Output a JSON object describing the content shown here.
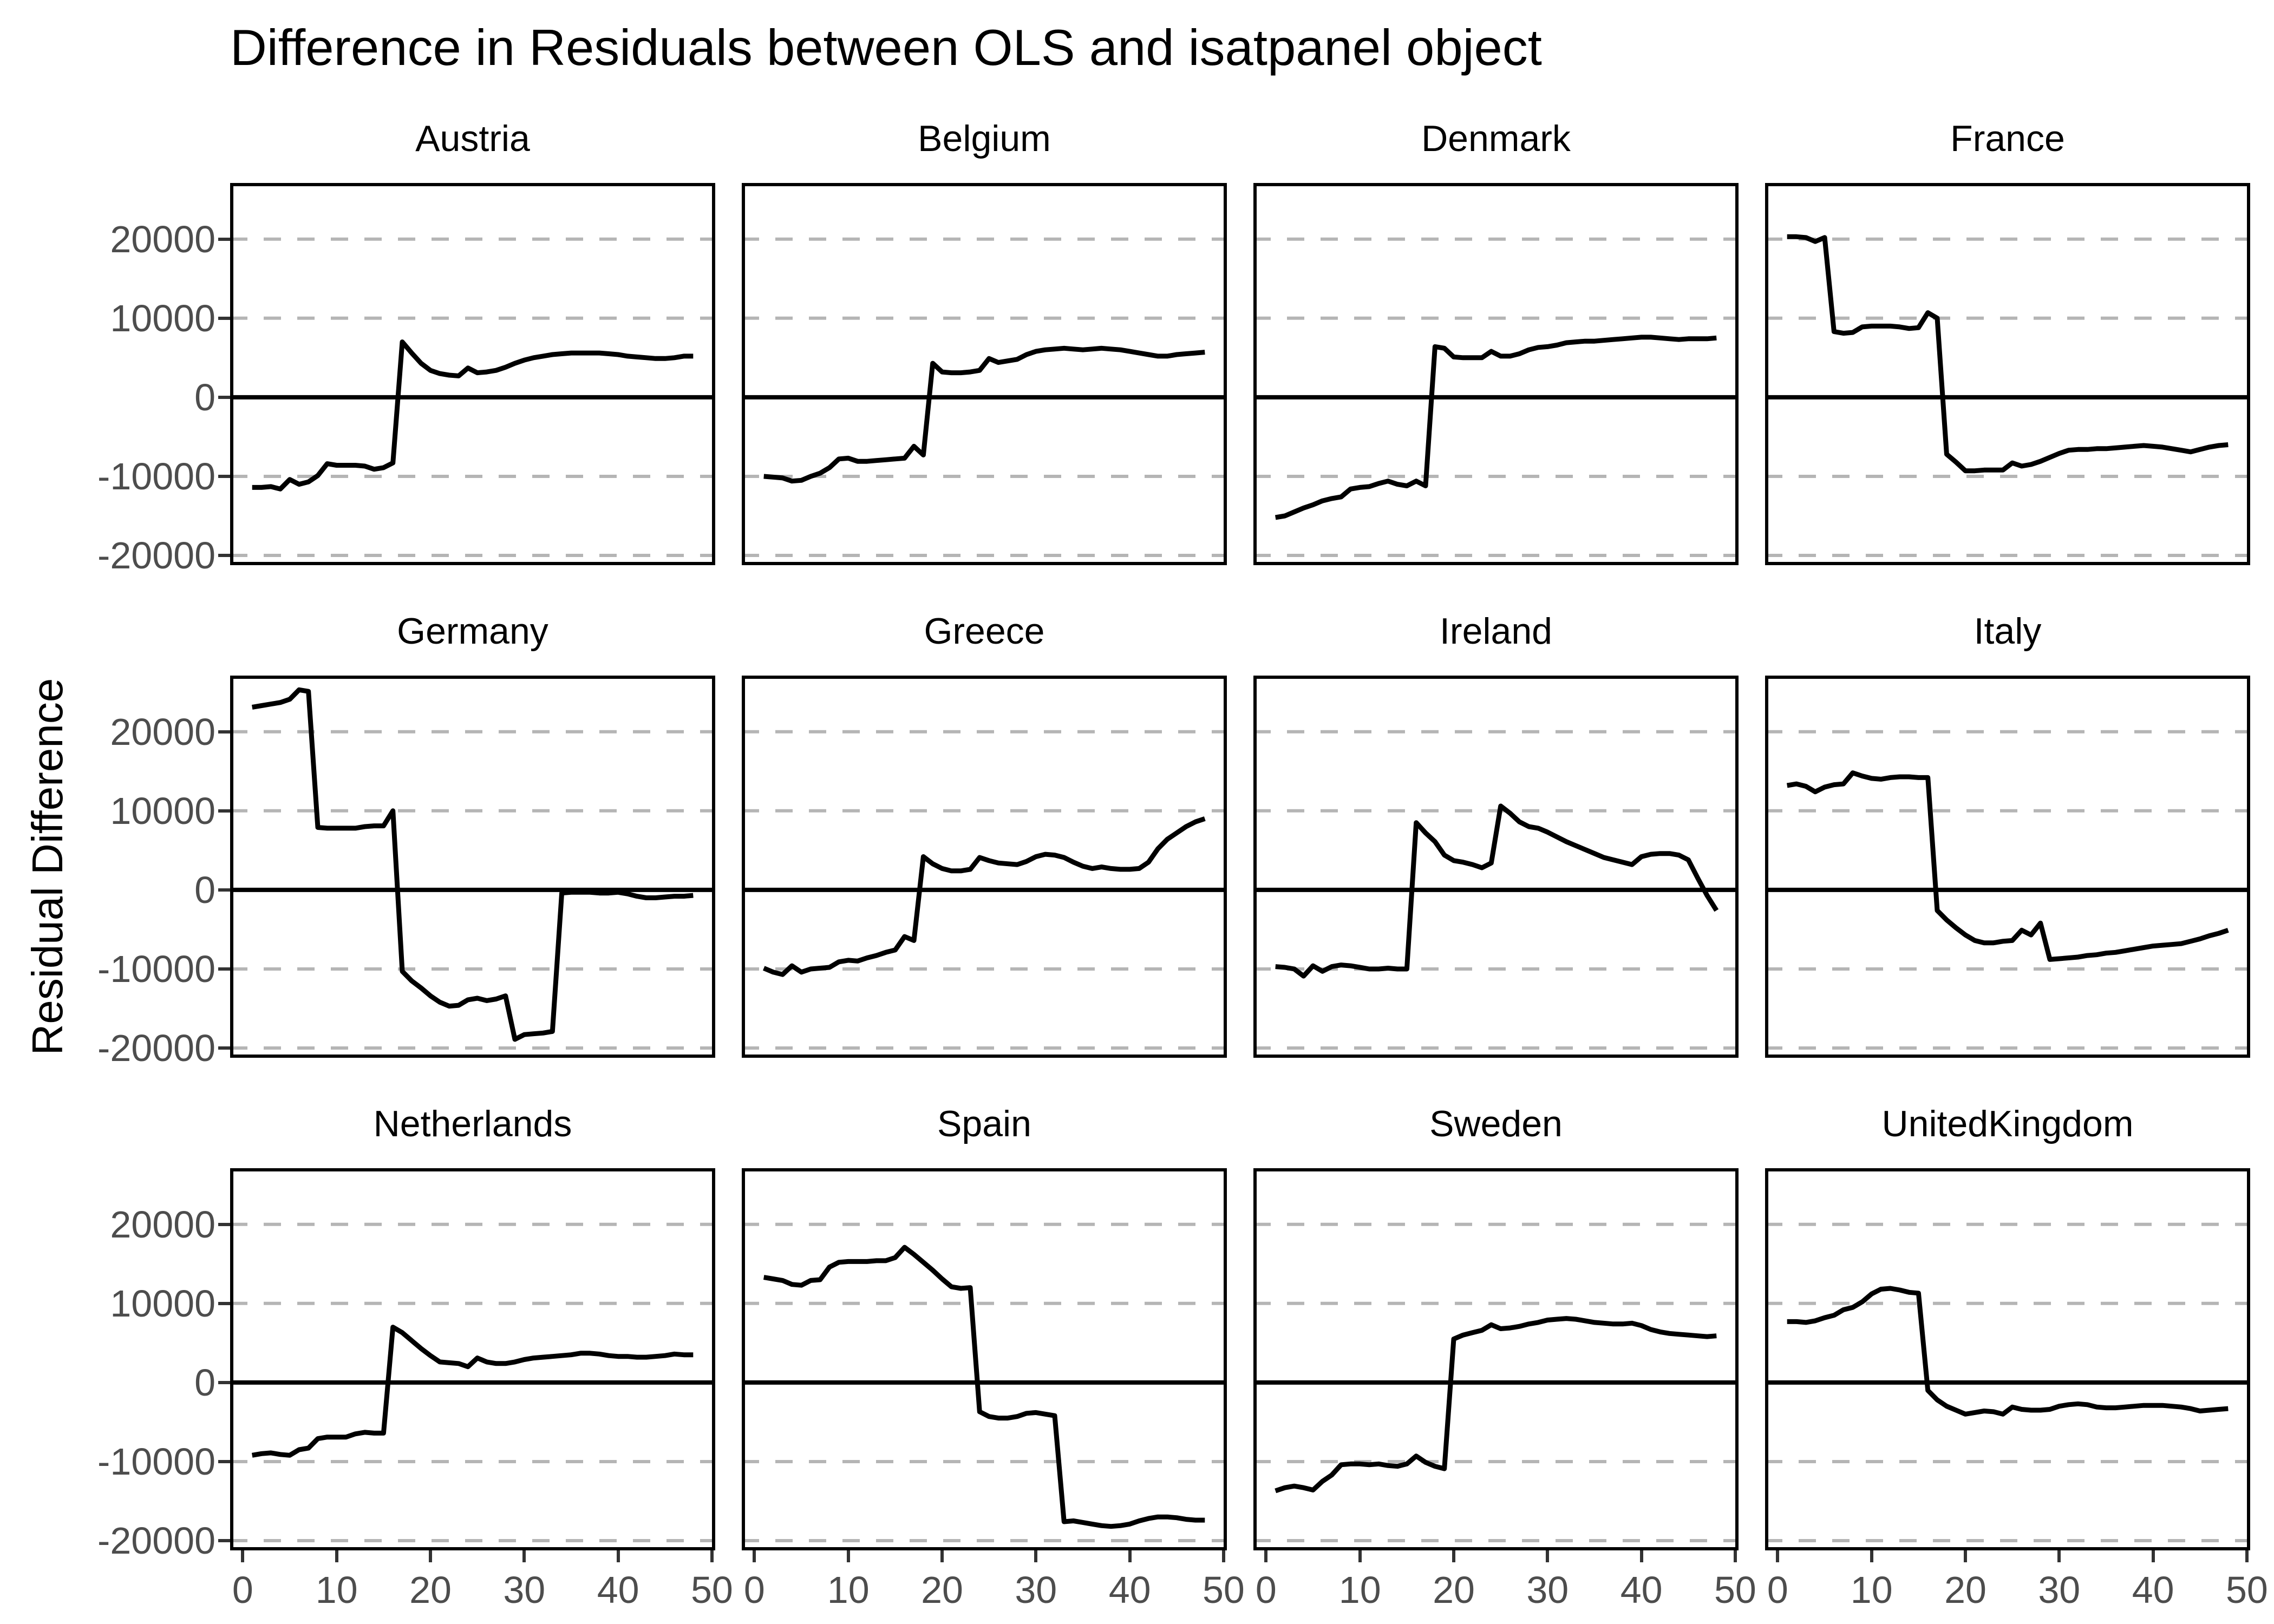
{
  "title": "Difference in Residuals between OLS and isatpanel object",
  "y_axis_label": "Residual Difference",
  "colors": {
    "line": "#000000",
    "zero_line": "#000000",
    "panel_border": "#000000",
    "gridline": "#b5b5b5",
    "tick_label": "#4d4d4d",
    "tick_mark": "#333333",
    "text": "#000000",
    "background": "#ffffff"
  },
  "chart_data": {
    "type": "line",
    "title": "Difference in Residuals between OLS and isatpanel object",
    "ylabel": "Residual Difference",
    "xlabel": "",
    "legend": "none",
    "grid": "horizontal-dashed",
    "zero_line": true,
    "x_start": 1,
    "x_ticks": [
      0,
      10,
      20,
      30,
      40,
      50
    ],
    "y_ticks": [
      20000,
      10000,
      0,
      -10000,
      -20000
    ],
    "x_range": [
      -1.35,
      50.35
    ],
    "y_range": [
      -21230,
      27100
    ],
    "facet_grid": {
      "rows": 3,
      "cols": 4
    },
    "facets": [
      {
        "label": "Austria",
        "values": [
          -11400,
          -11400,
          -11300,
          -11600,
          -10400,
          -11000,
          -10700,
          -9900,
          -8400,
          -8600,
          -8600,
          -8600,
          -8700,
          -9100,
          -8900,
          -8300,
          7000,
          5600,
          4300,
          3400,
          3000,
          2800,
          2700,
          3700,
          3100,
          3200,
          3400,
          3800,
          4300,
          4700,
          5000,
          5200,
          5400,
          5500,
          5600,
          5600,
          5600,
          5600,
          5500,
          5400,
          5200,
          5100,
          5000,
          4900,
          4900,
          5000,
          5200,
          5200
        ]
      },
      {
        "label": "Belgium",
        "values": [
          -10000,
          -10100,
          -10200,
          -10600,
          -10500,
          -10000,
          -9600,
          -8900,
          -7800,
          -7700,
          -8100,
          -8100,
          -8000,
          -7900,
          -7800,
          -7700,
          -6200,
          -7300,
          4300,
          3200,
          3100,
          3100,
          3200,
          3400,
          4900,
          4400,
          4600,
          4800,
          5400,
          5800,
          6000,
          6100,
          6200,
          6100,
          6000,
          6100,
          6200,
          6100,
          6000,
          5800,
          5600,
          5400,
          5200,
          5200,
          5400,
          5500,
          5600,
          5700
        ]
      },
      {
        "label": "Denmark",
        "values": [
          -15200,
          -15000,
          -14500,
          -14000,
          -13600,
          -13100,
          -12800,
          -12600,
          -11600,
          -11400,
          -11300,
          -10900,
          -10600,
          -11000,
          -11200,
          -10600,
          -11200,
          6400,
          6200,
          5100,
          5000,
          5000,
          5000,
          5800,
          5200,
          5200,
          5500,
          6000,
          6300,
          6400,
          6600,
          6900,
          7000,
          7100,
          7100,
          7200,
          7300,
          7400,
          7500,
          7600,
          7600,
          7500,
          7400,
          7300,
          7400,
          7400,
          7400,
          7500
        ]
      },
      {
        "label": "France",
        "values": [
          20300,
          20300,
          20200,
          19700,
          20200,
          8300,
          8100,
          8200,
          8900,
          9000,
          9000,
          9000,
          8900,
          8700,
          8800,
          10700,
          10000,
          -7200,
          -8200,
          -9300,
          -9300,
          -9200,
          -9200,
          -9200,
          -8300,
          -8700,
          -8500,
          -8100,
          -7600,
          -7100,
          -6700,
          -6600,
          -6600,
          -6500,
          -6500,
          -6400,
          -6300,
          -6200,
          -6100,
          -6200,
          -6300,
          -6500,
          -6700,
          -6900,
          -6600,
          -6300,
          -6100,
          -6000
        ]
      },
      {
        "label": "Germany",
        "values": [
          23100,
          23300,
          23500,
          23700,
          24100,
          25300,
          25100,
          7900,
          7800,
          7800,
          7800,
          7800,
          8000,
          8100,
          8100,
          10000,
          -10300,
          -11500,
          -12400,
          -13400,
          -14200,
          -14700,
          -14600,
          -13900,
          -13700,
          -14000,
          -13800,
          -13400,
          -18900,
          -18300,
          -18200,
          -18100,
          -17900,
          -400,
          -300,
          -300,
          -300,
          -400,
          -400,
          -300,
          -500,
          -800,
          -1000,
          -1000,
          -900,
          -800,
          -800,
          -700
        ]
      },
      {
        "label": "Greece",
        "values": [
          -9900,
          -10400,
          -10700,
          -9600,
          -10400,
          -10000,
          -9900,
          -9800,
          -9100,
          -8900,
          -9000,
          -8600,
          -8300,
          -7900,
          -7600,
          -5900,
          -6400,
          4200,
          3300,
          2700,
          2400,
          2400,
          2600,
          4100,
          3700,
          3400,
          3300,
          3200,
          3600,
          4200,
          4500,
          4400,
          4100,
          3500,
          3000,
          2700,
          2900,
          2700,
          2600,
          2600,
          2700,
          3500,
          5200,
          6400,
          7200,
          8000,
          8600,
          9000
        ]
      },
      {
        "label": "Ireland",
        "values": [
          -9700,
          -9800,
          -10000,
          -10900,
          -9600,
          -10300,
          -9700,
          -9500,
          -9600,
          -9800,
          -10000,
          -10000,
          -9900,
          -10000,
          -10000,
          8500,
          7200,
          6100,
          4400,
          3700,
          3500,
          3200,
          2800,
          3400,
          10600,
          9700,
          8600,
          8000,
          7800,
          7300,
          6700,
          6100,
          5600,
          5100,
          4600,
          4100,
          3800,
          3500,
          3200,
          4200,
          4500,
          4600,
          4600,
          4400,
          3800,
          1500,
          -700,
          -2600
        ]
      },
      {
        "label": "Italy",
        "values": [
          13200,
          13400,
          13100,
          12400,
          13000,
          13300,
          13400,
          14800,
          14400,
          14100,
          14000,
          14200,
          14300,
          14300,
          14200,
          14200,
          -2600,
          -3800,
          -4800,
          -5700,
          -6400,
          -6700,
          -6700,
          -6500,
          -6400,
          -5100,
          -5700,
          -4200,
          -8800,
          -8700,
          -8600,
          -8500,
          -8300,
          -8200,
          -8000,
          -7900,
          -7700,
          -7500,
          -7300,
          -7100,
          -7000,
          -6900,
          -6800,
          -6500,
          -6200,
          -5800,
          -5500,
          -5100
        ]
      },
      {
        "label": "Netherlands",
        "values": [
          -9200,
          -9000,
          -8900,
          -9100,
          -9200,
          -8500,
          -8300,
          -7100,
          -6900,
          -6900,
          -6900,
          -6500,
          -6300,
          -6400,
          -6400,
          7000,
          6300,
          5300,
          4300,
          3400,
          2600,
          2500,
          2400,
          2000,
          3100,
          2600,
          2400,
          2400,
          2600,
          2900,
          3100,
          3200,
          3300,
          3400,
          3500,
          3700,
          3700,
          3600,
          3400,
          3300,
          3300,
          3200,
          3200,
          3300,
          3400,
          3600,
          3500,
          3500
        ]
      },
      {
        "label": "Spain",
        "values": [
          13300,
          13100,
          12900,
          12400,
          12300,
          12900,
          13000,
          14600,
          15200,
          15300,
          15300,
          15300,
          15400,
          15400,
          15800,
          17100,
          16200,
          15200,
          14200,
          13100,
          12100,
          11900,
          12000,
          -3700,
          -4300,
          -4500,
          -4500,
          -4300,
          -3900,
          -3800,
          -4000,
          -4200,
          -17600,
          -17500,
          -17700,
          -17900,
          -18100,
          -18200,
          -18100,
          -17900,
          -17500,
          -17200,
          -17000,
          -17000,
          -17100,
          -17300,
          -17400,
          -17400
        ]
      },
      {
        "label": "Sweden",
        "values": [
          -13700,
          -13300,
          -13100,
          -13300,
          -13600,
          -12500,
          -11700,
          -10400,
          -10300,
          -10300,
          -10400,
          -10300,
          -10500,
          -10600,
          -10300,
          -9300,
          -10100,
          -10600,
          -10900,
          5500,
          6000,
          6300,
          6600,
          7300,
          6800,
          6900,
          7100,
          7400,
          7600,
          7900,
          8000,
          8100,
          8000,
          7800,
          7600,
          7500,
          7400,
          7400,
          7500,
          7200,
          6700,
          6400,
          6200,
          6100,
          6000,
          5900,
          5800,
          5900
        ]
      },
      {
        "label": "UnitedKingdom",
        "values": [
          7700,
          7700,
          7600,
          7800,
          8200,
          8500,
          9200,
          9500,
          10200,
          11200,
          11800,
          11900,
          11700,
          11400,
          11300,
          -1000,
          -2200,
          -3000,
          -3500,
          -4000,
          -3800,
          -3600,
          -3700,
          -4000,
          -3100,
          -3400,
          -3500,
          -3500,
          -3400,
          -3000,
          -2800,
          -2700,
          -2800,
          -3100,
          -3200,
          -3200,
          -3100,
          -3000,
          -2900,
          -2900,
          -2900,
          -3000,
          -3100,
          -3300,
          -3600,
          -3500,
          -3400,
          -3300
        ]
      }
    ]
  }
}
